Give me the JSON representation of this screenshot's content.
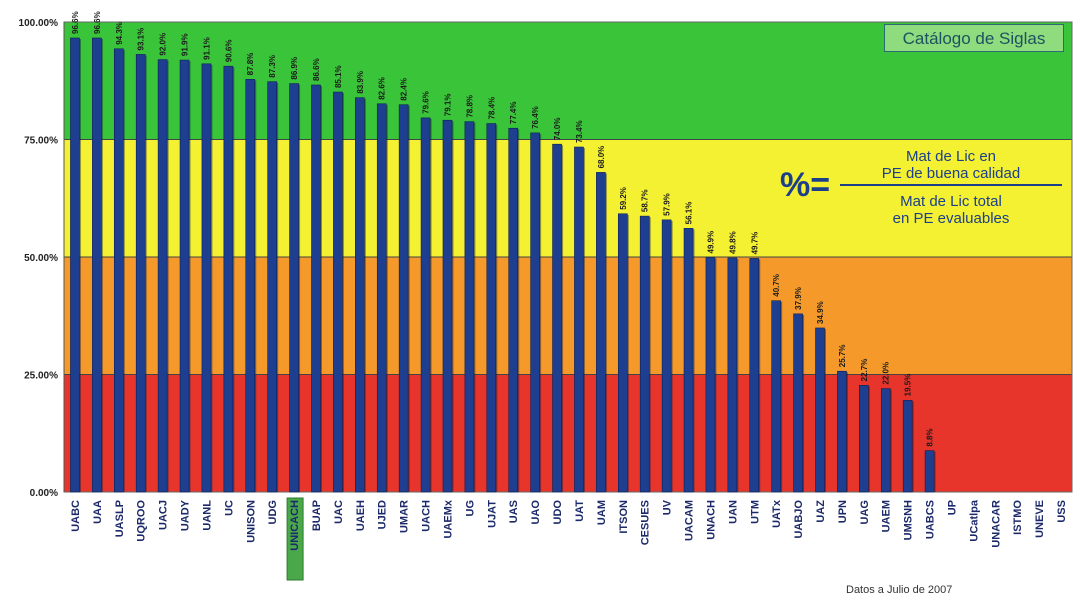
{
  "chart_data": {
    "type": "bar",
    "categories": [
      "UABC",
      "UAA",
      "UASLP",
      "UQROO",
      "UACJ",
      "UADY",
      "UANL",
      "UC",
      "UNISON",
      "UDG",
      "UNICACH",
      "BUAP",
      "UAC",
      "UAEH",
      "UJED",
      "UMAR",
      "UACH",
      "UAEMx",
      "UG",
      "UJAT",
      "UAS",
      "UAO",
      "UDO",
      "UAT",
      "UAM",
      "ITSON",
      "CESUES",
      "UV",
      "UACAM",
      "UNACH",
      "UAN",
      "UTM",
      "UATx",
      "UABJO",
      "UAZ",
      "UPN",
      "UAG",
      "UAEM",
      "UMSNH",
      "UABCS",
      "UP",
      "UCatlpa",
      "UNACAR",
      "ISTMO",
      "UNEVE",
      "USS"
    ],
    "values": [
      96.6,
      96.6,
      94.3,
      93.1,
      92.0,
      91.9,
      91.1,
      90.6,
      87.8,
      87.3,
      86.9,
      86.6,
      85.1,
      83.9,
      82.6,
      82.4,
      79.6,
      79.1,
      78.8,
      78.4,
      77.4,
      76.4,
      74.0,
      73.4,
      68.0,
      59.2,
      58.7,
      57.9,
      56.1,
      49.9,
      49.8,
      49.7,
      40.7,
      37.9,
      34.9,
      25.7,
      22.7,
      22.0,
      19.5,
      8.8,
      0,
      0,
      0,
      0,
      0,
      0
    ],
    "labels": [
      "96.6%",
      "96.6%",
      "94.3%",
      "93.1%",
      "92.0%",
      "91.9%",
      "91.1%",
      "90.6%",
      "87.8%",
      "87.3%",
      "86.9%",
      "86.6%",
      "85.1%",
      "83.9%",
      "82.6%",
      "82.4%",
      "79.6%",
      "79.1%",
      "78.8%",
      "78.4%",
      "77.4%",
      "76.4%",
      "74.0%",
      "73.4%",
      "68.0%",
      "59.2%",
      "58.7%",
      "57.9%",
      "56.1%",
      "49.9%",
      "49.8%",
      "49.7%",
      "40.7%",
      "37.9%",
      "34.9%",
      "25.7%",
      "22.7%",
      "22.0%",
      "19.5%",
      "8.8%",
      "",
      "",
      "",
      "",
      "",
      ""
    ],
    "highlighted_category": "UNICACH",
    "ylim": [
      0,
      100
    ],
    "yticks": [
      "0.00%",
      "25.00%",
      "50.00%",
      "75.00%",
      "100.00%"
    ],
    "ytick_values": [
      0,
      25,
      50,
      75,
      100
    ],
    "bands": [
      {
        "from": 75,
        "to": 100,
        "color": "#3ac43a"
      },
      {
        "from": 50,
        "to": 75,
        "color": "#f4f032"
      },
      {
        "from": 25,
        "to": 50,
        "color": "#f59a2a"
      },
      {
        "from": 0,
        "to": 25,
        "color": "#e8352c"
      }
    ],
    "bar_color": "#1e3f8f",
    "grid": true,
    "xlabel": "",
    "ylabel": "",
    "title": ""
  },
  "catalog_button": "Catálogo de Siglas",
  "formula": {
    "symbol": "%=",
    "numerator_line1": "Mat de Lic en",
    "numerator_line2": "PE de buena calidad",
    "denominator_line1": "Mat de Lic total",
    "denominator_line2": "en PE evaluables"
  },
  "footnote": "Datos a Julio de 2007"
}
